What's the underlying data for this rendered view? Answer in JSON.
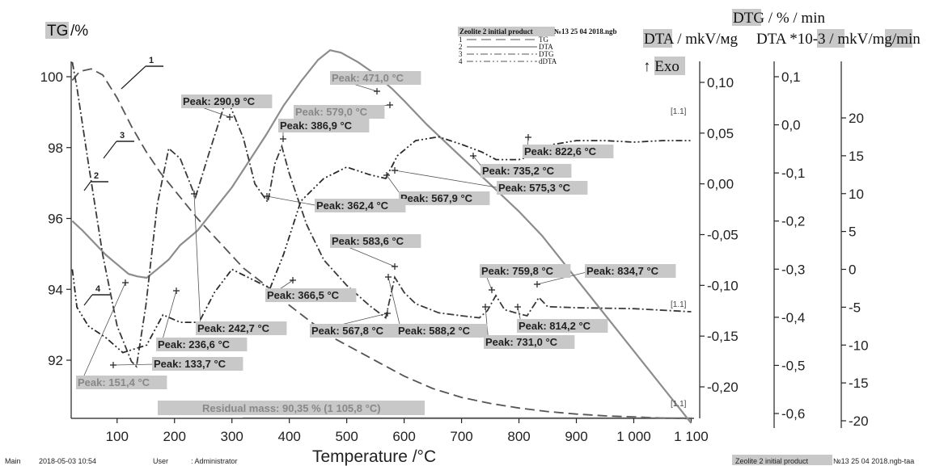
{
  "chart_data": {
    "type": "line",
    "xlabel": "Temperature /°C",
    "xlim": [
      20,
      1105
    ],
    "x_ticks": [
      "100",
      "200",
      "300",
      "400",
      "500",
      "600",
      "700",
      "800",
      "900",
      "1 000",
      "1 100"
    ],
    "x_tick_values": [
      100,
      200,
      300,
      400,
      500,
      600,
      700,
      800,
      900,
      1000,
      1100
    ],
    "axes": {
      "tg": {
        "label": "TG",
        "unit": "/%",
        "range": [
          90.35,
          100.5
        ],
        "ticks": [
          "100",
          "98",
          "96",
          "94",
          "92"
        ],
        "tick_values": [
          100,
          98,
          96,
          94,
          92
        ]
      },
      "dtg": {
        "label": "DTG / % / min",
        "range": [
          -0.245,
          0.14
        ],
        "ticks": [
          "0,10",
          "0,05",
          "0,00",
          "-0,05",
          "-0,10",
          "-0,15",
          "-0,20"
        ],
        "tick_values": [
          0.1,
          0.05,
          0.0,
          -0.05,
          -0.1,
          -0.15,
          -0.2
        ]
      },
      "dta": {
        "label": "DTA / mkV/мg",
        "range": [
          -0.64,
          0.17
        ],
        "ticks": [
          "0,1",
          "0,0",
          "-0,1",
          "-0,2",
          "-0,3",
          "-0,4",
          "-0,5",
          "-0,6"
        ],
        "tick_values": [
          0.1,
          0.0,
          -0.1,
          -0.2,
          -0.3,
          -0.4,
          -0.5,
          -0.6
        ]
      },
      "ddta": {
        "label": "DTA *10-3 / mkV/mg/min",
        "range": [
          -21,
          26
        ],
        "ticks": [
          "20",
          "15",
          "10",
          "5",
          "0",
          "-5",
          "-10",
          "-15",
          "-20"
        ],
        "tick_values": [
          20,
          15,
          10,
          5,
          0,
          -5,
          -10,
          -15,
          -20
        ]
      }
    },
    "exo_label": "↑ Exo",
    "legend": {
      "title": "Zeolite 2 initial product",
      "file": "№13 25 04 2018.ngb",
      "entries": [
        {
          "num": "1",
          "name": "TG"
        },
        {
          "num": "2",
          "name": "DTA"
        },
        {
          "num": "3",
          "name": "DTG"
        },
        {
          "num": "4",
          "name": "dDTA"
        }
      ]
    },
    "series": [
      {
        "name": "TG",
        "axis": "tg",
        "style": "dashed",
        "color": "#555555",
        "x": [
          22,
          35,
          55,
          75,
          100,
          125,
          150,
          175,
          200,
          240,
          280,
          320,
          360,
          400,
          440,
          480,
          520,
          560,
          600,
          650,
          700,
          750,
          800,
          850,
          900,
          950,
          1000,
          1050,
          1100
        ],
        "y": [
          99.9,
          100.15,
          100.22,
          100.05,
          99.4,
          98.6,
          97.9,
          97.3,
          96.8,
          96.0,
          95.3,
          94.6,
          94.1,
          93.55,
          93.05,
          92.6,
          92.25,
          91.9,
          91.55,
          91.2,
          90.95,
          90.78,
          90.65,
          90.55,
          90.48,
          90.43,
          90.4,
          90.37,
          90.35
        ]
      },
      {
        "name": "DTA",
        "axis": "dta",
        "style": "solid",
        "color": "#8c8c8c",
        "x": [
          22,
          40,
          60,
          80,
          100,
          120,
          135,
          151.4,
          170,
          190,
          210,
          240,
          270,
          300,
          330,
          360,
          390,
          420,
          450,
          471,
          490,
          520,
          550,
          579,
          600,
          640,
          680,
          720,
          760,
          800,
          840,
          880,
          920,
          960,
          1000,
          1040,
          1080,
          1100
        ],
        "y": [
          -0.2,
          -0.22,
          -0.245,
          -0.27,
          -0.29,
          -0.31,
          -0.315,
          -0.318,
          -0.3,
          -0.28,
          -0.25,
          -0.22,
          -0.175,
          -0.13,
          -0.075,
          -0.02,
          0.04,
          0.09,
          0.135,
          0.155,
          0.15,
          0.13,
          0.105,
          0.075,
          0.05,
          0.0,
          -0.045,
          -0.09,
          -0.135,
          -0.18,
          -0.23,
          -0.29,
          -0.35,
          -0.41,
          -0.47,
          -0.53,
          -0.59,
          -0.62
        ]
      },
      {
        "name": "DTG",
        "axis": "dtg",
        "style": "dashdot",
        "color": "#3a3a3a",
        "x": [
          22,
          30,
          50,
          75,
          100,
          125,
          133.7,
          150,
          170,
          190,
          210,
          236.6,
          260,
          290.9,
          320,
          340,
          362.4,
          375,
          386.9,
          400,
          430,
          460,
          500,
          540,
          567.8,
          583.6,
          600,
          620,
          660,
          700,
          731,
          745,
          759.8,
          775,
          800,
          814.2,
          834.7,
          850,
          900,
          1000,
          1100
        ],
        "y": [
          0.12,
          0.095,
          0.02,
          -0.07,
          -0.14,
          -0.175,
          -0.18,
          -0.12,
          -0.02,
          0.035,
          0.025,
          -0.013,
          0.03,
          0.085,
          0.045,
          0.0,
          -0.018,
          0.02,
          0.037,
          0.01,
          -0.04,
          -0.075,
          -0.1,
          -0.12,
          -0.132,
          -0.092,
          -0.107,
          -0.118,
          -0.127,
          -0.13,
          -0.132,
          -0.125,
          -0.11,
          -0.124,
          -0.128,
          -0.13,
          -0.112,
          -0.121,
          -0.122,
          -0.123,
          -0.126
        ]
      },
      {
        "name": "dDTA",
        "axis": "ddta",
        "style": "dashdotdot",
        "color": "#2a2a2a",
        "x": [
          22,
          30,
          50,
          80,
          110,
          151.4,
          180,
          210,
          242.7,
          270,
          300,
          340,
          366.5,
          390,
          420,
          460,
          500,
          540,
          567.9,
          588.2,
          620,
          660,
          700,
          735.2,
          760,
          800,
          822.6,
          860,
          900,
          950,
          1000,
          1050,
          1100
        ],
        "y": [
          0,
          -5,
          -7.5,
          -9,
          -11,
          -10,
          -6,
          -7,
          -7,
          -3,
          0,
          -1.5,
          -2.5,
          2,
          9,
          12,
          13.5,
          12.5,
          12,
          15,
          17,
          17.5,
          16.5,
          15.5,
          14.5,
          14.5,
          15,
          16.5,
          17,
          17,
          16.8,
          17,
          17
        ]
      }
    ],
    "annotations": [
      {
        "text": "Peak: 471,0 °C",
        "tone": "gray"
      },
      {
        "text": "Peak: 579,0 °C",
        "tone": "gray"
      },
      {
        "text": "Peak: 290,9 °C",
        "tone": "dark"
      },
      {
        "text": "Peak: 386,9 °C",
        "tone": "dark"
      },
      {
        "text": "Peak: 822,6 °C",
        "tone": "dark"
      },
      {
        "text": "Peak: 735,2 °C",
        "tone": "dark"
      },
      {
        "text": "Peak: 575,3 °C",
        "tone": "dark"
      },
      {
        "text": "Peak: 567,9 °C",
        "tone": "dark"
      },
      {
        "text": "Peak: 362,4 °C",
        "tone": "dark"
      },
      {
        "text": "Peak: 583,6 °C",
        "tone": "dark"
      },
      {
        "text": "Peak: 759,8 °C",
        "tone": "dark"
      },
      {
        "text": "Peak: 834,7 °C",
        "tone": "dark"
      },
      {
        "text": "Peak: 366,5 °C",
        "tone": "dark"
      },
      {
        "text": "Peak: 242,7 °C",
        "tone": "dark"
      },
      {
        "text": "Peak: 236,6 °C",
        "tone": "dark"
      },
      {
        "text": "Peak: 133,7 °C",
        "tone": "dark"
      },
      {
        "text": "Peak: 151,4 °C",
        "tone": "gray"
      },
      {
        "text": "Peak: 567,8 °C",
        "tone": "dark"
      },
      {
        "text": "Peak: 588,2 °C",
        "tone": "dark"
      },
      {
        "text": "Peak: 731,0 °C",
        "tone": "dark"
      },
      {
        "text": "Peak: 814,2 °C",
        "tone": "dark"
      }
    ],
    "residual": "Residual mass: 90,35 % (1 105,8 °C)",
    "markers": [
      "[1.1]",
      "[1.1]",
      "[1.1]"
    ],
    "curve_numbers": [
      "1",
      "2",
      "3",
      "4"
    ],
    "grid": false
  },
  "footer": {
    "main": "Main",
    "date": "2018-05-03 10:54",
    "user_label": "User",
    "user": ": Administrator",
    "product": "Zeolite 2 initial product",
    "file": "№13 25 04 2018.ngb-taa"
  }
}
